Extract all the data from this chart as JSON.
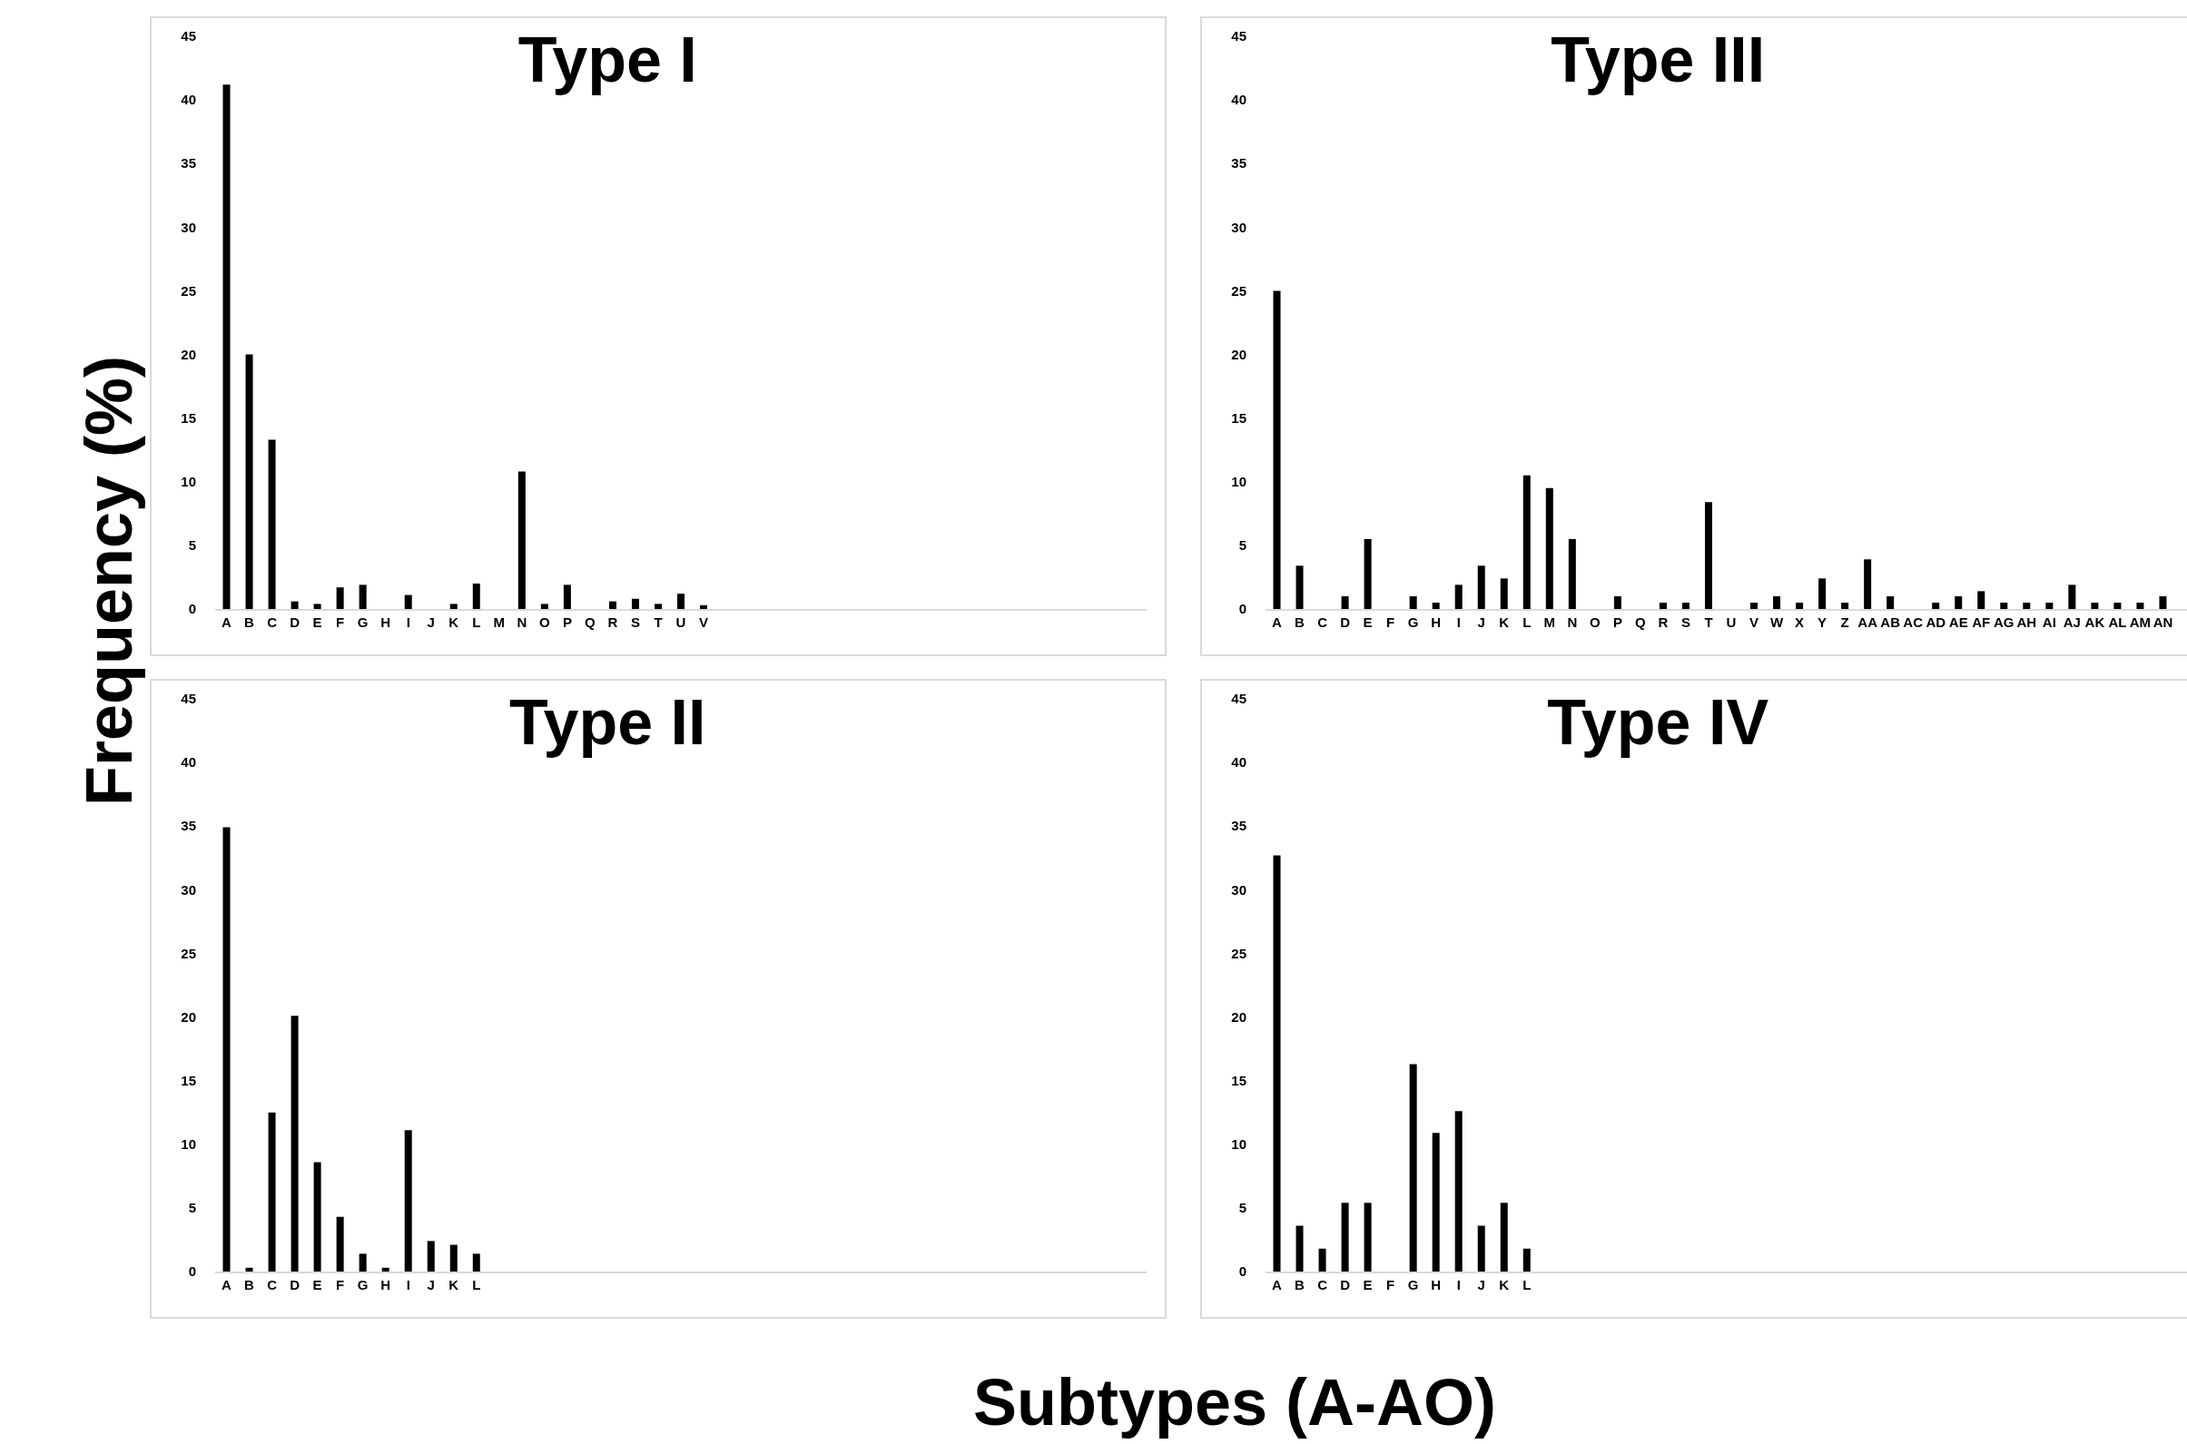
{
  "chart_data": [
    {
      "type": "bar",
      "title": "Type I",
      "ylabel": "Frequency (%)",
      "categories": [
        "A",
        "B",
        "C",
        "D",
        "E",
        "F",
        "G",
        "H",
        "I",
        "J",
        "K",
        "L",
        "M",
        "N",
        "O",
        "P",
        "Q",
        "R",
        "S",
        "T",
        "U",
        "V"
      ],
      "values": [
        41.2,
        20.0,
        13.3,
        0.6,
        0.4,
        1.7,
        1.9,
        0,
        1.1,
        0,
        0.4,
        2.0,
        0,
        10.8,
        0.4,
        1.9,
        0,
        0.6,
        0.8,
        0.4,
        1.2,
        0.3
      ],
      "color": "#000000",
      "ylim": [
        0,
        45
      ],
      "yticks": [
        0,
        5,
        10,
        15,
        20,
        25,
        30,
        35,
        40,
        45
      ],
      "grid": false,
      "legend": false
    },
    {
      "type": "bar",
      "title": "Type III",
      "categories": [
        "A",
        "B",
        "C",
        "D",
        "E",
        "F",
        "G",
        "H",
        "I",
        "J",
        "K",
        "L",
        "M",
        "N",
        "O",
        "P",
        "Q",
        "R",
        "S",
        "T",
        "U",
        "V",
        "W",
        "X",
        "Y",
        "Z",
        "AA",
        "AB",
        "AC",
        "AD",
        "AE",
        "AF",
        "AG",
        "AH",
        "AI",
        "AJ",
        "AK",
        "AL",
        "AM",
        "AN"
      ],
      "values": [
        25,
        3.4,
        0,
        1.0,
        5.5,
        0,
        1.0,
        0.5,
        1.9,
        3.4,
        2.4,
        10.5,
        9.5,
        5.5,
        0,
        1.0,
        0,
        0.5,
        0.5,
        8.4,
        0,
        0.5,
        1.0,
        0.5,
        2.4,
        0.5,
        3.9,
        1.0,
        0,
        0.5,
        1.0,
        1.4,
        0.5,
        0.5,
        0.5,
        1.9,
        0.5,
        0.5,
        0.5,
        1.0
      ],
      "color": "#000000",
      "ylim": [
        0,
        45
      ],
      "yticks": [
        0,
        5,
        10,
        15,
        20,
        25,
        30,
        35,
        40,
        45
      ],
      "grid": false,
      "legend": false
    },
    {
      "type": "bar",
      "title": "Type II",
      "categories": [
        "A",
        "B",
        "C",
        "D",
        "E",
        "F",
        "G",
        "H",
        "I",
        "J",
        "K",
        "L"
      ],
      "values": [
        34.9,
        0.3,
        12.5,
        20.1,
        8.6,
        4.3,
        1.4,
        0.3,
        11.1,
        2.4,
        2.1,
        1.4
      ],
      "color": "#000000",
      "ylim": [
        0,
        45
      ],
      "yticks": [
        0,
        5,
        10,
        15,
        20,
        25,
        30,
        35,
        40,
        45
      ],
      "grid": false,
      "legend": false
    },
    {
      "type": "bar",
      "title": "Type IV",
      "xlabel": "Subtypes (A-AO)",
      "categories": [
        "A",
        "B",
        "C",
        "D",
        "E",
        "F",
        "G",
        "H",
        "I",
        "J",
        "K",
        "L"
      ],
      "values": [
        32.7,
        3.6,
        1.8,
        5.4,
        5.4,
        0,
        16.3,
        10.9,
        12.6,
        3.6,
        5.4,
        1.8
      ],
      "color": "#000000",
      "ylim": [
        0,
        45
      ],
      "yticks": [
        0,
        5,
        10,
        15,
        20,
        25,
        30,
        35,
        40,
        45
      ],
      "grid": false,
      "legend": false
    }
  ]
}
